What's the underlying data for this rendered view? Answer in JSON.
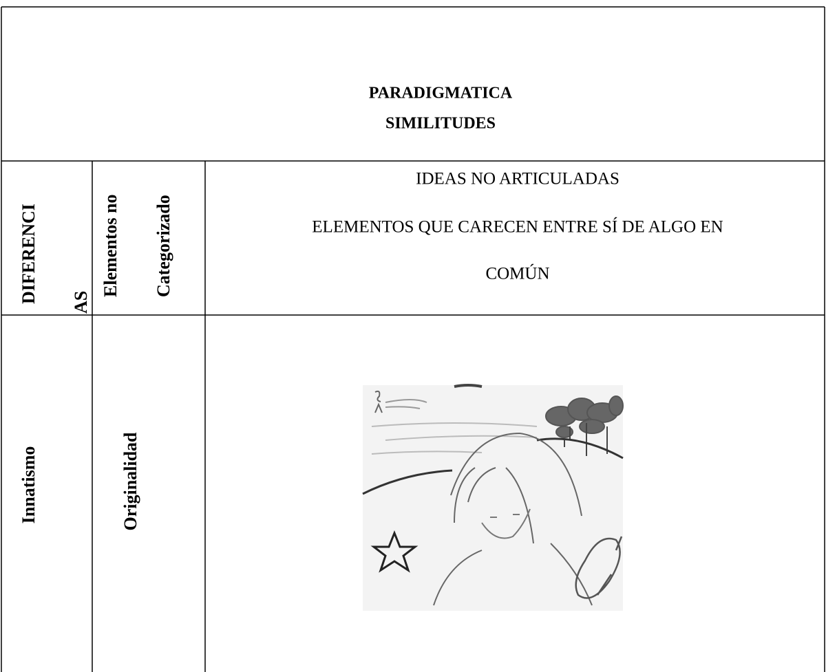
{
  "header": {
    "title": "PARADIGMATICA",
    "subtitle": "SIMILITUDES"
  },
  "table": {
    "rows": [
      [
        [
          "DIFERENCI",
          "AS"
        ],
        [
          "Elementos no",
          "Categorizado"
        ],
        [
          "IDEAS NO ARTICULADAS",
          "ELEMENTOS QUE CARECEN ENTRE SÍ DE ALGO EN",
          "COMÚN"
        ]
      ],
      [
        [
          "Innatismo"
        ],
        [
          "Originalidad"
        ]
      ]
    ]
  }
}
